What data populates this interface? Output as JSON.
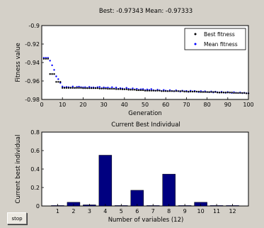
{
  "stop_label": "stop",
  "chart_data": [
    {
      "type": "scatter",
      "title": "Best: -0.97343 Mean: -0.97333",
      "xlabel": "Generation",
      "ylabel": "Fitness value",
      "xlim": [
        0,
        100
      ],
      "ylim": [
        -0.98,
        -0.9
      ],
      "xticks": [
        "0",
        "10",
        "20",
        "30",
        "40",
        "50",
        "60",
        "70",
        "80",
        "90",
        "100"
      ],
      "yticks": [
        "-0.9",
        "-0.92",
        "-0.94",
        "-0.96",
        "-0.98"
      ],
      "grid": false,
      "legend_position": "top-right",
      "series": [
        {
          "name": "Best fitness",
          "color": "#000000",
          "marker": "point",
          "x": [
            1,
            2,
            3,
            4,
            5,
            6,
            7,
            8,
            9,
            10,
            11,
            12,
            13,
            14,
            15,
            16,
            17,
            18,
            19,
            20,
            21,
            22,
            23,
            24,
            25,
            26,
            27,
            28,
            29,
            30,
            31,
            32,
            33,
            34,
            35,
            36,
            37,
            38,
            39,
            40,
            41,
            42,
            43,
            44,
            45,
            46,
            47,
            48,
            49,
            50,
            51,
            52,
            53,
            54,
            55,
            56,
            57,
            58,
            59,
            60,
            61,
            62,
            63,
            64,
            65,
            66,
            67,
            68,
            69,
            70,
            71,
            72,
            73,
            74,
            75,
            76,
            77,
            78,
            79,
            80,
            81,
            82,
            83,
            84,
            85,
            86,
            87,
            88,
            89,
            90,
            91,
            92,
            93,
            94,
            95,
            96,
            97,
            98,
            99,
            100
          ],
          "y": [
            -0.936,
            -0.936,
            -0.936,
            -0.9525,
            -0.9525,
            -0.9525,
            -0.961,
            -0.961,
            -0.961,
            -0.9675,
            -0.9675,
            -0.9675,
            -0.9675,
            -0.9675,
            -0.9675,
            -0.9675,
            -0.9675,
            -0.9675,
            -0.9675,
            -0.9678,
            -0.9678,
            -0.9678,
            -0.9678,
            -0.9678,
            -0.9678,
            -0.9678,
            -0.9678,
            -0.9682,
            -0.9682,
            -0.9682,
            -0.9682,
            -0.9685,
            -0.9685,
            -0.9685,
            -0.9685,
            -0.9688,
            -0.9688,
            -0.9688,
            -0.969,
            -0.969,
            -0.969,
            -0.9695,
            -0.9695,
            -0.9695,
            -0.9695,
            -0.97,
            -0.97,
            -0.97,
            -0.97,
            -0.9705,
            -0.9705,
            -0.9705,
            -0.9705,
            -0.9705,
            -0.9705,
            -0.9705,
            -0.9705,
            -0.971,
            -0.971,
            -0.971,
            -0.971,
            -0.971,
            -0.971,
            -0.971,
            -0.971,
            -0.971,
            -0.971,
            -0.971,
            -0.9715,
            -0.9715,
            -0.9715,
            -0.9715,
            -0.9715,
            -0.9715,
            -0.9715,
            -0.9715,
            -0.972,
            -0.972,
            -0.972,
            -0.972,
            -0.972,
            -0.972,
            -0.972,
            -0.972,
            -0.9725,
            -0.9725,
            -0.9725,
            -0.9725,
            -0.9725,
            -0.9725,
            -0.9725,
            -0.9725,
            -0.973,
            -0.973,
            -0.973,
            -0.973,
            -0.973,
            -0.973,
            -0.9734,
            -0.9734
          ]
        },
        {
          "name": "Mean fitness",
          "color": "#0000ff",
          "marker": "point",
          "x": [
            1,
            2,
            3,
            4,
            5,
            6,
            7,
            8,
            9,
            10,
            11,
            12,
            13,
            14,
            15,
            16,
            17,
            18,
            19,
            20,
            21,
            22,
            23,
            24,
            25,
            26,
            27,
            28,
            29,
            30,
            31,
            32,
            33,
            34,
            35,
            36,
            37,
            38,
            39,
            40,
            41,
            42,
            43,
            44,
            45,
            46,
            47,
            48,
            49,
            50,
            51,
            52,
            53,
            54,
            55,
            56,
            57,
            58,
            59,
            60,
            61,
            62,
            63,
            64,
            65,
            66,
            67,
            68,
            69,
            70,
            71,
            72,
            73,
            74,
            75,
            76,
            77,
            78,
            79,
            80,
            81,
            82,
            83,
            84,
            85,
            86,
            87,
            88,
            89,
            90,
            91,
            92,
            93,
            94,
            95,
            96,
            97,
            98,
            99,
            100
          ],
          "y": [
            -0.935,
            -0.935,
            -0.935,
            -0.938,
            -0.943,
            -0.948,
            -0.955,
            -0.958,
            -0.962,
            -0.966,
            -0.967,
            -0.9665,
            -0.9668,
            -0.9672,
            -0.966,
            -0.9675,
            -0.9665,
            -0.9662,
            -0.9668,
            -0.967,
            -0.9668,
            -0.9675,
            -0.9665,
            -0.9672,
            -0.967,
            -0.9675,
            -0.9668,
            -0.9665,
            -0.9678,
            -0.967,
            -0.9675,
            -0.9672,
            -0.968,
            -0.9668,
            -0.9682,
            -0.9672,
            -0.9685,
            -0.9678,
            -0.9682,
            -0.9688,
            -0.9675,
            -0.9685,
            -0.969,
            -0.968,
            -0.9692,
            -0.9685,
            -0.9695,
            -0.969,
            -0.9688,
            -0.97,
            -0.9692,
            -0.9698,
            -0.9688,
            -0.97,
            -0.9705,
            -0.9695,
            -0.9702,
            -0.9708,
            -0.9698,
            -0.9705,
            -0.971,
            -0.97,
            -0.9708,
            -0.9712,
            -0.9702,
            -0.971,
            -0.9715,
            -0.9705,
            -0.9712,
            -0.9708,
            -0.9718,
            -0.9706,
            -0.9714,
            -0.9708,
            -0.9716,
            -0.972,
            -0.971,
            -0.9718,
            -0.9712,
            -0.972,
            -0.9722,
            -0.9714,
            -0.9724,
            -0.9716,
            -0.9722,
            -0.9726,
            -0.9718,
            -0.9725,
            -0.9728,
            -0.972,
            -0.9726,
            -0.973,
            -0.9722,
            -0.9728,
            -0.973,
            -0.9725,
            -0.9732,
            -0.9728,
            -0.9733,
            -0.9733
          ]
        }
      ]
    },
    {
      "type": "bar",
      "title": "Current Best Individual",
      "xlabel": "Number of variables (12)",
      "ylabel": "Current best individual",
      "categories": [
        "1",
        "2",
        "3",
        "4",
        "5",
        "6",
        "7",
        "8",
        "9",
        "10",
        "11",
        "12"
      ],
      "values": [
        0.005,
        0.04,
        0.012,
        0.55,
        0.005,
        0.17,
        0.005,
        0.345,
        0.005,
        0.04,
        0.005,
        0.005
      ],
      "ylim": [
        0,
        0.8
      ],
      "yticks": [
        "0",
        "0.2",
        "0.4",
        "0.6",
        "0.8"
      ],
      "xlim": [
        0,
        13
      ],
      "bar_color": "#000080",
      "grid": false
    }
  ]
}
